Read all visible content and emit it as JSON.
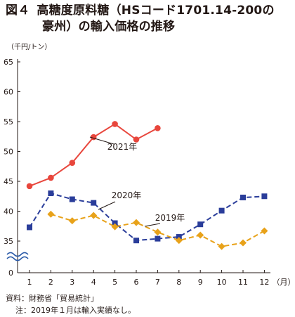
{
  "title": {
    "figure_label": "図４",
    "line1": "高糖度原料糖（HSコード1701.14-200の",
    "line2": "豪州）の輸入価格の推移"
  },
  "unit_label": "（千円/トン）",
  "source": {
    "line1": "資料：財務省「貿易統計」",
    "line2": "注：2019年１月は輸入実績なし。"
  },
  "chart_data": {
    "type": "line",
    "x": [
      1,
      2,
      3,
      4,
      5,
      6,
      7,
      8,
      9,
      10,
      11,
      12
    ],
    "x_unit": "（月）",
    "y_ticks": [
      "0",
      "35",
      "40",
      "45",
      "50",
      "55",
      "60",
      "65"
    ],
    "ylim": [
      35,
      65
    ],
    "axis_break": true,
    "grid": false,
    "series": [
      {
        "name": "2021年",
        "color": "#e8463c",
        "marker": "circle",
        "dash": "solid",
        "values": [
          44.2,
          45.6,
          48.1,
          52.4,
          54.6,
          52.0,
          53.9,
          null,
          null,
          null,
          null,
          null
        ]
      },
      {
        "name": "2020年",
        "color": "#2a3d9a",
        "marker": "square",
        "dash": "dashed",
        "values": [
          37.3,
          43.0,
          42.0,
          41.4,
          38.0,
          35.1,
          35.4,
          35.7,
          37.8,
          40.1,
          42.3,
          42.5
        ]
      },
      {
        "name": "2019年",
        "color": "#e8a21a",
        "marker": "diamond",
        "dash": "dashed",
        "values": [
          null,
          39.5,
          38.4,
          39.3,
          37.4,
          38.1,
          36.5,
          35.1,
          36.0,
          34.1,
          34.7,
          36.7
        ]
      }
    ]
  }
}
